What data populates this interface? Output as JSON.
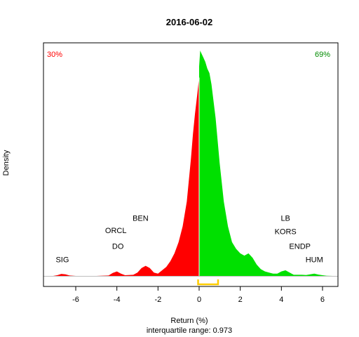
{
  "chart_data": {
    "type": "area",
    "title": "2016-06-02",
    "xlabel": "Return (%)",
    "ylabel": "Density",
    "subtitle": "interquartile range: 0.973",
    "xlim": [
      -7.1,
      6.5
    ],
    "ylim": [
      0,
      1.0
    ],
    "xticks": [
      -6,
      -4,
      -2,
      0,
      2,
      4,
      6
    ],
    "grid": false,
    "colors": {
      "negative": "#ff0000",
      "positive": "#00e000",
      "iqr": "#ffcc00",
      "baseline": "#bebebe",
      "neg_text": "#ff0000",
      "pos_text": "#008b00"
    },
    "share_negative": "30%",
    "share_positive": "69%",
    "iqr_range": [
      -0.05,
      0.92
    ],
    "series": [
      {
        "x": [
          -7.1,
          -6.9,
          -6.7,
          -6.5,
          -6.3,
          -6.0,
          -5.0,
          -4.4,
          -4.2,
          -4.0,
          -3.8,
          -3.6,
          -3.2,
          -3.0,
          -2.8,
          -2.6,
          -2.4,
          -2.2,
          -2.0,
          -1.8,
          -1.6,
          -1.4,
          -1.2,
          -1.0,
          -0.8,
          -0.6,
          -0.4,
          -0.3,
          -0.2,
          -0.1,
          0.0,
          0.05,
          0.1,
          0.2,
          0.3,
          0.4,
          0.5,
          0.6,
          0.8,
          1.0,
          1.2,
          1.4,
          1.6,
          1.8,
          2.0,
          2.2,
          2.4,
          2.6,
          2.8,
          3.0,
          3.2,
          3.4,
          3.6,
          3.8,
          4.0,
          4.2,
          4.4,
          4.6,
          4.8,
          5.0,
          5.2,
          5.4,
          5.6,
          5.8,
          6.0,
          6.2,
          6.5
        ],
        "y": [
          0.0,
          0.003,
          0.009,
          0.007,
          0.002,
          0.0,
          0.0,
          0.002,
          0.013,
          0.02,
          0.01,
          0.003,
          0.005,
          0.015,
          0.035,
          0.045,
          0.035,
          0.015,
          0.01,
          0.025,
          0.04,
          0.065,
          0.1,
          0.15,
          0.22,
          0.33,
          0.52,
          0.63,
          0.72,
          0.8,
          0.88,
          1.0,
          0.99,
          0.97,
          0.95,
          0.92,
          0.9,
          0.85,
          0.7,
          0.5,
          0.33,
          0.22,
          0.15,
          0.12,
          0.1,
          0.09,
          0.1,
          0.08,
          0.05,
          0.03,
          0.02,
          0.015,
          0.01,
          0.01,
          0.02,
          0.025,
          0.015,
          0.005,
          0.005,
          0.005,
          0.004,
          0.007,
          0.01,
          0.006,
          0.003,
          0.001,
          0.0
        ]
      }
    ],
    "annotations": [
      {
        "label": "SIG",
        "x": -6.65,
        "y": 0.06
      },
      {
        "label": "ORCL",
        "x": -4.05,
        "y": 0.19
      },
      {
        "label": "DO",
        "x": -3.95,
        "y": 0.12
      },
      {
        "label": "BEN",
        "x": -2.85,
        "y": 0.245
      },
      {
        "label": "LB",
        "x": 4.2,
        "y": 0.245
      },
      {
        "label": "KORS",
        "x": 4.2,
        "y": 0.185
      },
      {
        "label": "ENDP",
        "x": 4.9,
        "y": 0.12
      },
      {
        "label": "HUM",
        "x": 5.6,
        "y": 0.06
      }
    ]
  }
}
